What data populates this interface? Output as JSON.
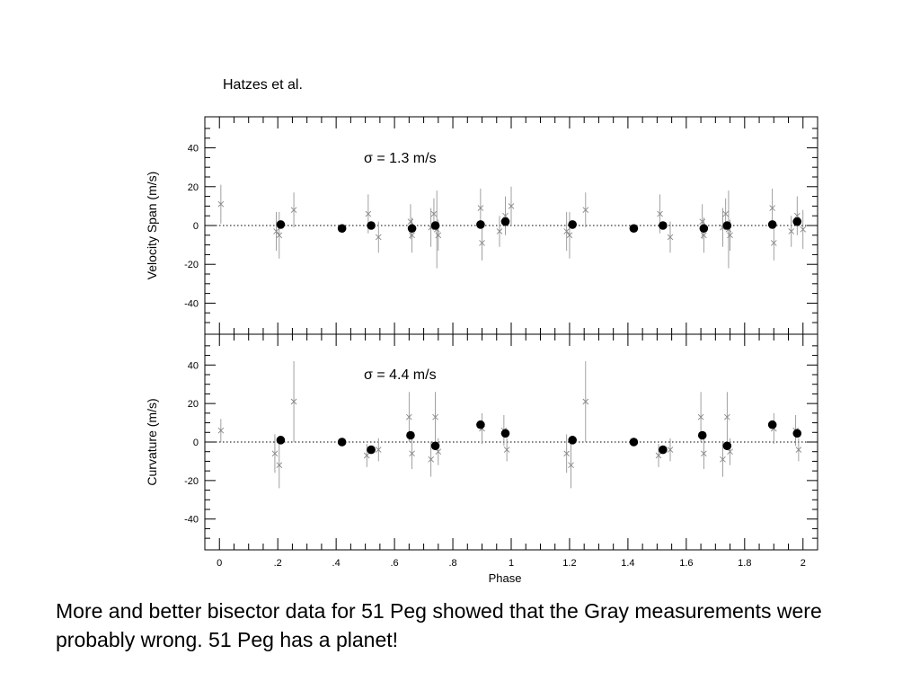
{
  "credit": "Hatzes et al.",
  "caption": "More and better bisector data for 51 Peg showed that the Gray measurements were probably wrong. 51 Peg has a planet!",
  "colors": {
    "binned": "#000000",
    "individual": "#888888",
    "zero_line": "#000000"
  },
  "chart_data": [
    {
      "type": "scatter",
      "ylabel": "Velocity Span (m/s)",
      "annotation": "σ = 1.3 m/s",
      "xlim": [
        -0.05,
        2.05
      ],
      "ylim": [
        -56,
        56
      ],
      "y_ticks": [
        -40,
        -20,
        0,
        20,
        40
      ],
      "y_tick_labels": [
        "-40",
        "-20",
        "0",
        "20",
        "40"
      ],
      "zero_line": "dotted",
      "series": [
        {
          "marker": "filled-circle",
          "points": [
            {
              "x": 0.21,
              "y": 0.5
            },
            {
              "x": 0.42,
              "y": -1.5
            },
            {
              "x": 0.52,
              "y": 0
            },
            {
              "x": 0.66,
              "y": -1.5
            },
            {
              "x": 0.74,
              "y": 0
            },
            {
              "x": 0.895,
              "y": 0.5
            },
            {
              "x": 0.98,
              "y": 2
            },
            {
              "x": 1.21,
              "y": 0.5
            },
            {
              "x": 1.42,
              "y": -1.5
            },
            {
              "x": 1.52,
              "y": 0
            },
            {
              "x": 1.66,
              "y": -1.5
            },
            {
              "x": 1.74,
              "y": 0
            },
            {
              "x": 1.895,
              "y": 0.5
            },
            {
              "x": 1.98,
              "y": 2
            }
          ]
        },
        {
          "marker": "cross-with-errorbar",
          "points": [
            {
              "x": 0.005,
              "y": 11,
              "err": 10
            },
            {
              "x": 0.195,
              "y": -3,
              "err": 10
            },
            {
              "x": 0.205,
              "y": -5,
              "err": 12
            },
            {
              "x": 0.255,
              "y": 8,
              "err": 9
            },
            {
              "x": 0.51,
              "y": 6,
              "err": 10
            },
            {
              "x": 0.545,
              "y": -6,
              "err": 8
            },
            {
              "x": 0.655,
              "y": 2,
              "err": 9
            },
            {
              "x": 0.66,
              "y": -5,
              "err": 9
            },
            {
              "x": 0.725,
              "y": -1,
              "err": 10
            },
            {
              "x": 0.735,
              "y": 6,
              "err": 8
            },
            {
              "x": 0.745,
              "y": -2,
              "err": 20
            },
            {
              "x": 0.75,
              "y": -5,
              "err": 8
            },
            {
              "x": 0.895,
              "y": 9,
              "err": 10
            },
            {
              "x": 0.9,
              "y": -9,
              "err": 9
            },
            {
              "x": 0.96,
              "y": -3,
              "err": 8
            },
            {
              "x": 0.98,
              "y": 5,
              "err": 10
            },
            {
              "x": 1.0,
              "y": 10,
              "err": 10
            },
            {
              "x": 1.19,
              "y": -3,
              "err": 10
            },
            {
              "x": 1.2,
              "y": -5,
              "err": 12
            },
            {
              "x": 1.255,
              "y": 8,
              "err": 9
            },
            {
              "x": 1.51,
              "y": 6,
              "err": 10
            },
            {
              "x": 1.545,
              "y": -6,
              "err": 8
            },
            {
              "x": 1.655,
              "y": 2,
              "err": 9
            },
            {
              "x": 1.66,
              "y": -5,
              "err": 9
            },
            {
              "x": 1.725,
              "y": -1,
              "err": 10
            },
            {
              "x": 1.735,
              "y": 6,
              "err": 8
            },
            {
              "x": 1.745,
              "y": -2,
              "err": 20
            },
            {
              "x": 1.75,
              "y": -5,
              "err": 8
            },
            {
              "x": 1.895,
              "y": 9,
              "err": 10
            },
            {
              "x": 1.9,
              "y": -9,
              "err": 9
            },
            {
              "x": 1.96,
              "y": -3,
              "err": 8
            },
            {
              "x": 1.98,
              "y": 5,
              "err": 10
            },
            {
              "x": 2.0,
              "y": -2,
              "err": 10
            }
          ]
        }
      ]
    },
    {
      "type": "scatter",
      "ylabel": "Curvature (m/s)",
      "xlabel": "Phase",
      "annotation": "σ = 4.4 m/s",
      "xlim": [
        -0.05,
        2.05
      ],
      "ylim": [
        -56,
        56
      ],
      "x_ticks": [
        0,
        0.2,
        0.4,
        0.6,
        0.8,
        1,
        1.2,
        1.4,
        1.6,
        1.8,
        2
      ],
      "x_tick_labels": [
        "0",
        ".2",
        ".4",
        ".6",
        ".8",
        "1",
        "1.2",
        "1.4",
        "1.6",
        "1.8",
        "2"
      ],
      "y_ticks": [
        -40,
        -20,
        0,
        20,
        40
      ],
      "y_tick_labels": [
        "-40",
        "-20",
        "0",
        "20",
        "40"
      ],
      "zero_line": "dotted",
      "series": [
        {
          "marker": "filled-circle",
          "points": [
            {
              "x": 0.21,
              "y": 1
            },
            {
              "x": 0.42,
              "y": 0
            },
            {
              "x": 0.52,
              "y": -4
            },
            {
              "x": 0.655,
              "y": 3.5
            },
            {
              "x": 0.74,
              "y": -2
            },
            {
              "x": 0.895,
              "y": 9
            },
            {
              "x": 0.98,
              "y": 4.5
            },
            {
              "x": 1.21,
              "y": 1
            },
            {
              "x": 1.42,
              "y": 0
            },
            {
              "x": 1.52,
              "y": -4
            },
            {
              "x": 1.655,
              "y": 3.5
            },
            {
              "x": 1.74,
              "y": -2
            },
            {
              "x": 1.895,
              "y": 9
            },
            {
              "x": 1.98,
              "y": 4.5
            }
          ]
        },
        {
          "marker": "cross-with-errorbar",
          "points": [
            {
              "x": 0.005,
              "y": 6,
              "err": 6
            },
            {
              "x": 0.19,
              "y": -6,
              "err": 10
            },
            {
              "x": 0.205,
              "y": -12,
              "err": 12
            },
            {
              "x": 0.255,
              "y": 21,
              "err": 21
            },
            {
              "x": 0.505,
              "y": -7,
              "err": 6
            },
            {
              "x": 0.545,
              "y": -4,
              "err": 6
            },
            {
              "x": 0.65,
              "y": 13,
              "err": 13
            },
            {
              "x": 0.66,
              "y": -6,
              "err": 8
            },
            {
              "x": 0.725,
              "y": -9,
              "err": 9
            },
            {
              "x": 0.74,
              "y": 13,
              "err": 13
            },
            {
              "x": 0.75,
              "y": -5,
              "err": 7
            },
            {
              "x": 0.9,
              "y": 7,
              "err": 8
            },
            {
              "x": 0.975,
              "y": 6,
              "err": 8
            },
            {
              "x": 0.985,
              "y": -4,
              "err": 6
            },
            {
              "x": 1.19,
              "y": -6,
              "err": 10
            },
            {
              "x": 1.205,
              "y": -12,
              "err": 12
            },
            {
              "x": 1.255,
              "y": 21,
              "err": 21
            },
            {
              "x": 1.505,
              "y": -7,
              "err": 6
            },
            {
              "x": 1.545,
              "y": -4,
              "err": 6
            },
            {
              "x": 1.65,
              "y": 13,
              "err": 13
            },
            {
              "x": 1.66,
              "y": -6,
              "err": 8
            },
            {
              "x": 1.725,
              "y": -9,
              "err": 9
            },
            {
              "x": 1.74,
              "y": 13,
              "err": 13
            },
            {
              "x": 1.75,
              "y": -5,
              "err": 7
            },
            {
              "x": 1.9,
              "y": 7,
              "err": 8
            },
            {
              "x": 1.975,
              "y": 6,
              "err": 8
            },
            {
              "x": 1.985,
              "y": -4,
              "err": 6
            }
          ]
        }
      ]
    }
  ]
}
